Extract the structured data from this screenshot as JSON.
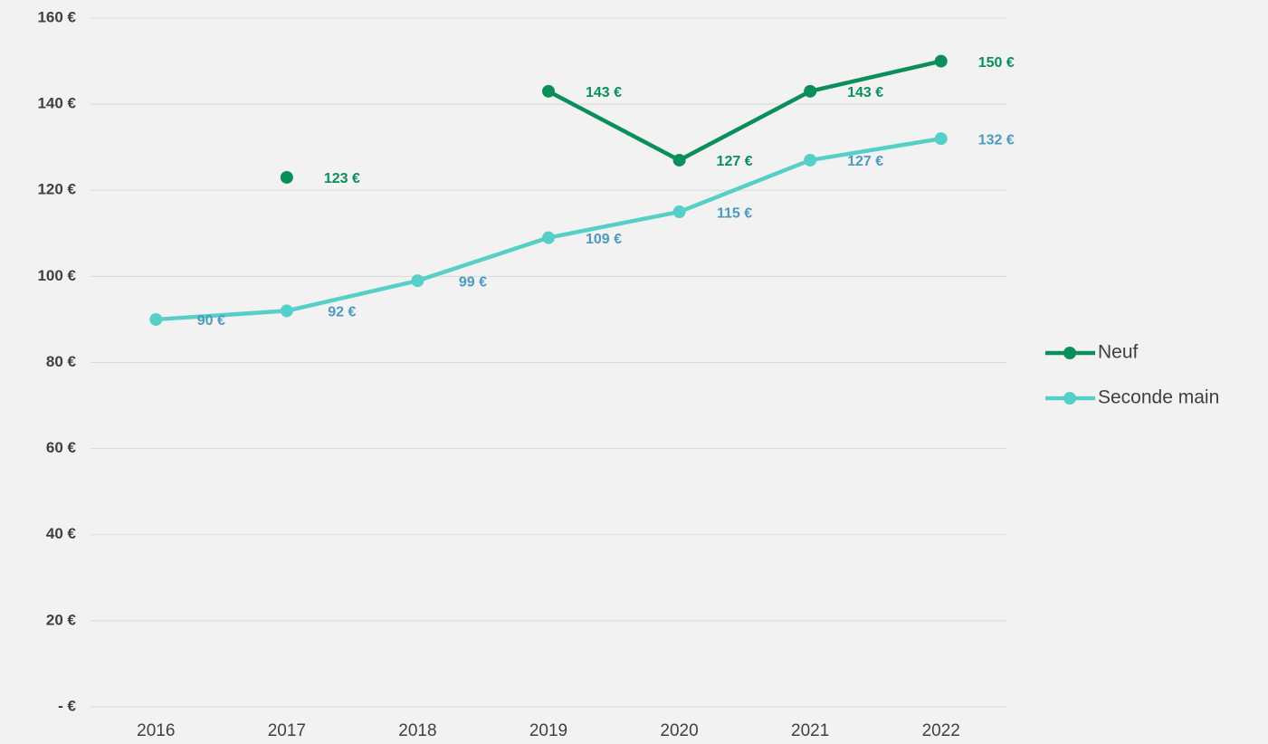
{
  "chart_data": {
    "type": "line",
    "categories": [
      "2016",
      "2017",
      "2018",
      "2019",
      "2020",
      "2021",
      "2022"
    ],
    "series": [
      {
        "name": "Neuf",
        "color": "#0a8f5a",
        "label_color": "#0a8f5a",
        "values": [
          null,
          123,
          null,
          143,
          127,
          143,
          150
        ],
        "value_labels": [
          null,
          "123 €",
          null,
          "143 €",
          "127 €",
          "143 €",
          "150 €"
        ]
      },
      {
        "name": "Seconde main",
        "color": "#56cfc8",
        "label_color": "#4a9bbf",
        "values": [
          90,
          92,
          99,
          109,
          115,
          127,
          132
        ],
        "value_labels": [
          "90 €",
          "92 €",
          "99 €",
          "109 €",
          "115 €",
          "127 €",
          "132 €"
        ]
      }
    ],
    "ylim": [
      0,
      160
    ],
    "yticks": [
      {
        "value": 0,
        "label": "-   €"
      },
      {
        "value": 20,
        "label": "20 €"
      },
      {
        "value": 40,
        "label": "40 €"
      },
      {
        "value": 60,
        "label": "60 €"
      },
      {
        "value": 80,
        "label": "80 €"
      },
      {
        "value": 100,
        "label": "100 €"
      },
      {
        "value": 120,
        "label": "120 €"
      },
      {
        "value": 140,
        "label": "140 €"
      },
      {
        "value": 160,
        "label": "160 €"
      }
    ],
    "grid": true,
    "legend": "right"
  }
}
